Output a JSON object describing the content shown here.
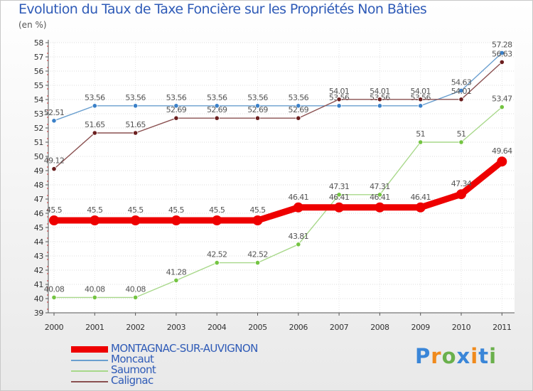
{
  "title": "Evolution du Taux de Taxe Foncière sur les Propriétés Non Bâties",
  "unit": "(en %)",
  "logo": {
    "letters": [
      {
        "ch": "P",
        "color": "#3a86d8"
      },
      {
        "ch": "r",
        "color": "#f08a1c"
      },
      {
        "ch": "o",
        "color": "#6ab04c"
      },
      {
        "ch": "x",
        "color": "#3a86d8"
      },
      {
        "ch": "i",
        "color": "#f08a1c"
      },
      {
        "ch": "t",
        "color": "#3a86d8"
      },
      {
        "ch": "i",
        "color": "#6ab04c"
      }
    ]
  },
  "chart_data": {
    "type": "line",
    "title": "Evolution du Taux de Taxe Foncière sur les Propriétés Non Bâties",
    "ylabel": "(en %)",
    "xlabel": "",
    "ylim": [
      39,
      58
    ],
    "yticks": [
      39,
      40,
      41,
      42,
      43,
      44,
      45,
      46,
      47,
      48,
      49,
      50,
      51,
      52,
      53,
      54,
      55,
      56,
      57,
      58
    ],
    "categories": [
      "2000",
      "2001",
      "2002",
      "2003",
      "2004",
      "2005",
      "2006",
      "2007",
      "2008",
      "2009",
      "2010",
      "2011"
    ],
    "grid": true,
    "legend": "bottom-left",
    "series": [
      {
        "name": "Moncaut",
        "color": "#6a9fcf",
        "marker": "#3a80c8",
        "values": [
          52.51,
          53.56,
          53.56,
          53.56,
          53.56,
          53.56,
          53.56,
          53.56,
          53.56,
          53.56,
          54.63,
          57.28
        ],
        "labels": [
          "52.51",
          "53.56",
          "53.56",
          "53.56",
          "53.56",
          "53.56",
          "53.56",
          "53.56",
          "53.56",
          "53.56",
          "54.63",
          "57.28"
        ]
      },
      {
        "name": "Saumont",
        "color": "#a8d88a",
        "marker": "#74c442",
        "values": [
          40.08,
          40.08,
          40.08,
          41.28,
          42.52,
          42.52,
          43.81,
          47.31,
          47.31,
          51,
          51,
          53.47
        ],
        "labels": [
          "40.08",
          "40.08",
          "40.08",
          "41.28",
          "42.52",
          "42.52",
          "43.81",
          "47.31",
          "47.31",
          "51",
          "51",
          "53.47"
        ]
      },
      {
        "name": "Calignac",
        "color": "#8a5050",
        "marker": "#6b1f1f",
        "values": [
          49.12,
          51.65,
          51.65,
          52.69,
          52.69,
          52.69,
          52.69,
          54.01,
          54.01,
          54.01,
          54.01,
          56.63
        ],
        "labels": [
          "49.12",
          "51.65",
          "51.65",
          "52.69",
          "52.69",
          "52.69",
          "52.69",
          "54.01",
          "54.01",
          "54.01",
          "54.01",
          "56.63"
        ]
      },
      {
        "name": "MONTAGNAC-SUR-AUVIGNON",
        "color": "#ee0000",
        "marker": "#ee0000",
        "thick": true,
        "values": [
          45.5,
          45.5,
          45.5,
          45.5,
          45.5,
          45.5,
          46.41,
          46.41,
          46.41,
          46.41,
          47.34,
          49.64
        ],
        "labels": [
          "45.5",
          "45.5",
          "45.5",
          "45.5",
          "45.5",
          "45.5",
          "46.41",
          "46.41",
          "46.41",
          "46.41",
          "47.34",
          "49.64"
        ]
      }
    ],
    "legend_order": [
      "MONTAGNAC-SUR-AUVIGNON",
      "Moncaut",
      "Saumont",
      "Calignac"
    ]
  }
}
